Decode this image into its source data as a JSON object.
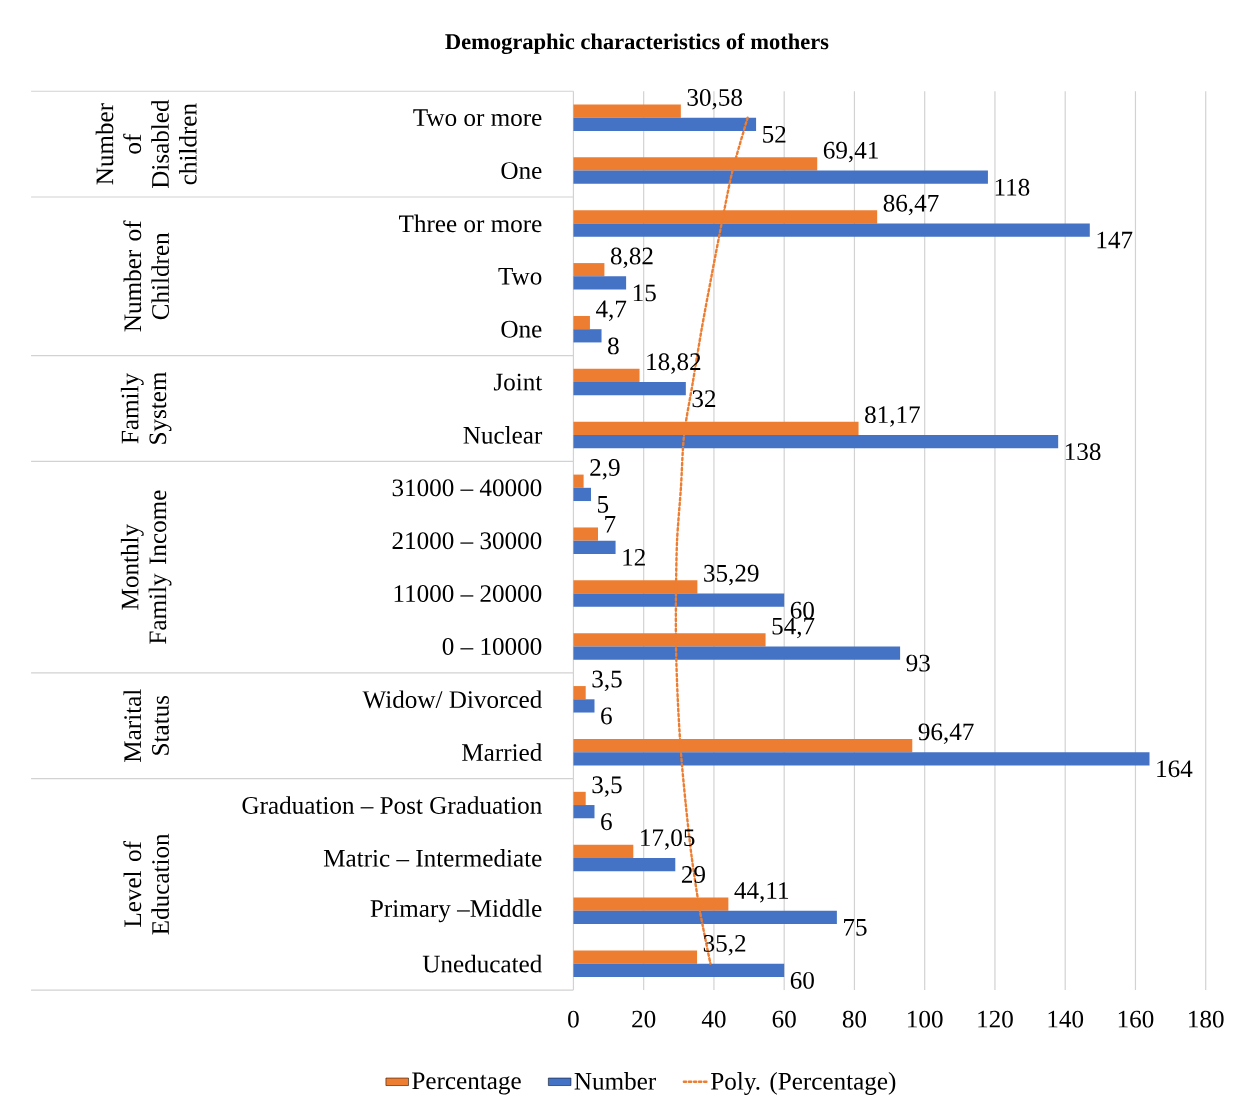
{
  "chart_data": {
    "type": "bar",
    "orientation": "horizontal",
    "title": "Demographic characteristics of mothers",
    "categories": [
      "Two or more",
      "One",
      "Three or more",
      "Two",
      "One",
      "Joint",
      "Nuclear",
      "31000 – 40000",
      "21000 – 30000",
      "11000 – 20000",
      "0 – 10000",
      "Widow/ Divorced",
      "Married",
      "Graduation – Post Graduation",
      "Matric – Intermediate",
      "Primary –Middle",
      "Uneducated"
    ],
    "series": [
      {
        "name": "Percentage",
        "color": "#ed7d31",
        "values": [
          30.58,
          69.41,
          86.47,
          8.82,
          4.7,
          18.82,
          81.17,
          2.9,
          7,
          35.29,
          54.7,
          3.5,
          96.47,
          3.5,
          17.05,
          44.11,
          35.2
        ],
        "value_labels": [
          "30,58",
          "69,41",
          "86,47",
          "8,82",
          "4,7",
          "18,82",
          "81,17",
          "2,9",
          "7",
          "35,29",
          "54,7",
          "3,5",
          "96,47",
          "3,5",
          "17,05",
          "44,11",
          "35,2"
        ]
      },
      {
        "name": "Number",
        "color": "#4472c4",
        "values": [
          52,
          118,
          147,
          15,
          8,
          32,
          138,
          5,
          12,
          60,
          93,
          6,
          164,
          6,
          29,
          75,
          60
        ],
        "value_labels": [
          "52",
          "118",
          "147",
          "15",
          "8",
          "32",
          "138",
          "5",
          "12",
          "60",
          "93",
          "6",
          "164",
          "6",
          "29",
          "75",
          "60"
        ]
      },
      {
        "name": "Poly. (Percentage)",
        "type": "line",
        "color": "#ed7d31",
        "line_style": "dotted",
        "marker": "none",
        "values": [
          49.6,
          45.3,
          42.2,
          39.3,
          36.5,
          34,
          31.5,
          30.6,
          29.5,
          29.2,
          29.2,
          29.7,
          30.6,
          32,
          33.7,
          36,
          39
        ]
      }
    ],
    "xlim": [
      0,
      180
    ],
    "xticks": [
      0,
      20,
      40,
      60,
      80,
      100,
      120,
      140,
      160,
      180
    ],
    "grid": "x",
    "legend": "bottom",
    "annotations": [
      "Number of Disabled children",
      "Number of Children",
      "Family System",
      "Monthly Family Income",
      "Marital Status",
      "Level of Education"
    ]
  }
}
